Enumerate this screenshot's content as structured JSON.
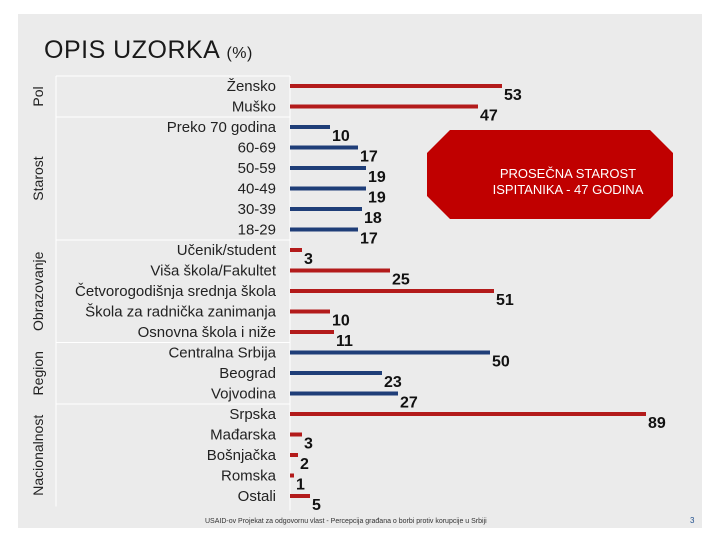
{
  "title": {
    "main": "OPIS UZORKA",
    "unit": "(%)"
  },
  "callout": {
    "line1": "PROSEČNA STAROST",
    "line2": "ISPITANIKA - 47 GODINA"
  },
  "footer": "USAID-ov Projekat za odgovornu vlast - Percepcija građana o borbi protiv korupcije u Srbiji",
  "page_number": "3",
  "colors": {
    "red": "#b31b1b",
    "blue": "#1f3e78",
    "panel": "#ebebeb",
    "callout": "#c00000"
  },
  "chart_data": {
    "type": "bar",
    "orientation": "horizontal",
    "xlim": [
      0,
      100
    ],
    "groups": [
      {
        "name": "Pol",
        "categories": [
          "Žensko",
          "Muško"
        ],
        "values": [
          53,
          47
        ],
        "color": "red"
      },
      {
        "name": "Starost",
        "categories": [
          "Preko 70 godina",
          "60-69",
          "50-59",
          "40-49",
          "30-39",
          "18-29"
        ],
        "values": [
          10,
          17,
          19,
          19,
          18,
          17
        ],
        "color": "blue"
      },
      {
        "name": "Obrazovanje",
        "categories": [
          "Učenik/student",
          "Viša škola/Fakultet",
          "Četvorogodišnja srednja škola",
          "Škola za radnička zanimanja",
          "Osnovna škola i niže"
        ],
        "values": [
          3,
          25,
          51,
          10,
          11
        ],
        "color": "red"
      },
      {
        "name": "Region",
        "categories": [
          "Centralna Srbija",
          "Beograd",
          "Vojvodina"
        ],
        "values": [
          50,
          23,
          27
        ],
        "color": "blue"
      },
      {
        "name": "Nacionalnost",
        "categories": [
          "Srpska",
          "Mađarska",
          "Bošnjačka",
          "Romska",
          "Ostali"
        ],
        "values": [
          89,
          3,
          2,
          1,
          5
        ],
        "color": "red"
      }
    ]
  }
}
